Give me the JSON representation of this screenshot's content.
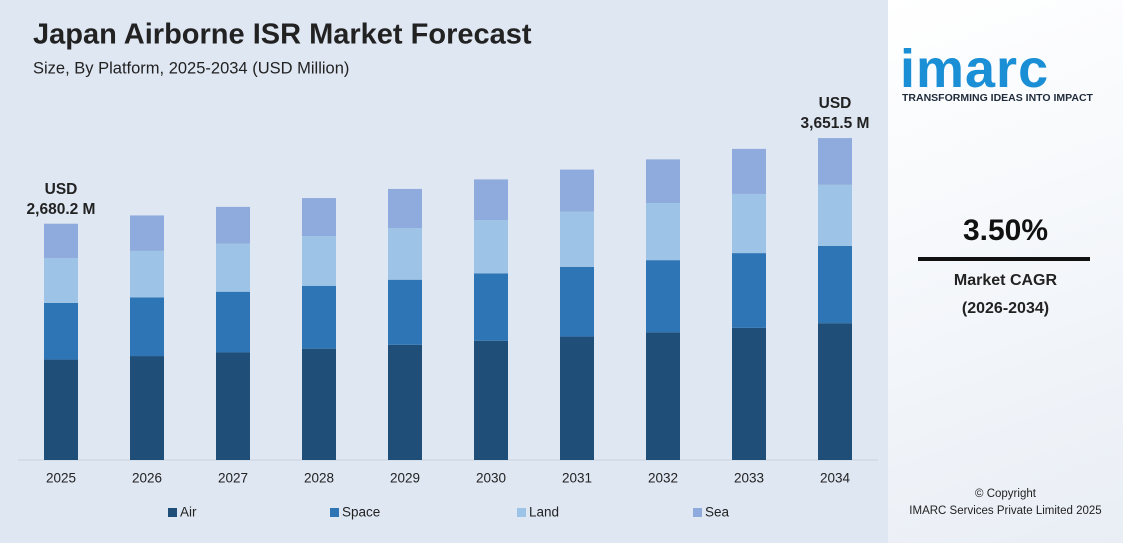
{
  "chart_data": {
    "type": "stacked-bar",
    "title": "Japan Airborne ISR Market Forecast",
    "subtitle": "Size, By Platform, 2025-2034 (USD Million)",
    "categories": [
      "2025",
      "2026",
      "2027",
      "2028",
      "2029",
      "2030",
      "2031",
      "2032",
      "2033",
      "2034"
    ],
    "series": [
      {
        "name": "Air",
        "color": "#1f4e79",
        "values": [
          1139.1,
          1179,
          1220,
          1263,
          1307,
          1353,
          1400,
          1449,
          1500,
          1551.9
        ]
      },
      {
        "name": "Space",
        "color": "#2e75b6",
        "values": [
          643.2,
          666,
          689,
          713,
          738,
          764,
          791,
          818,
          847,
          876.4
        ]
      },
      {
        "name": "Land",
        "color": "#9dc3e6",
        "values": [
          509.2,
          527,
          545,
          564,
          584,
          605,
          626,
          648,
          671,
          693.8
        ]
      },
      {
        "name": "Sea",
        "color": "#8faadc",
        "values": [
          388.7,
          402,
          417,
          431,
          446,
          461,
          477,
          495,
          511,
          529.4
        ]
      }
    ],
    "ylim": [
      0,
      3800
    ],
    "annotations": [
      {
        "lines": [
          "USD",
          "2,680.2 M"
        ]
      },
      {
        "lines": [
          "USD",
          "3,651.5 M"
        ]
      }
    ],
    "legend": "bottom"
  },
  "sidebar": {
    "logo": "imarc",
    "tagline": "TRANSFORMING IDEAS INTO IMPACT",
    "cagr": "3.50%",
    "cagr_label": "Market CAGR",
    "cagr_period": "(2026-2034)",
    "copyright": "© Copyright",
    "company": "IMARC Services Private Limited 2025"
  }
}
